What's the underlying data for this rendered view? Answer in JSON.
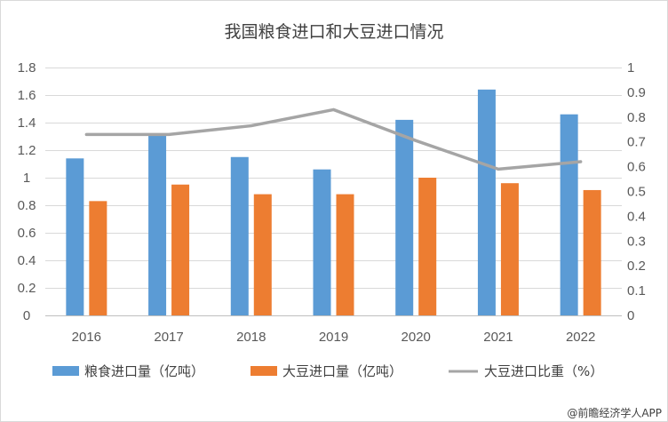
{
  "chart_data": {
    "type": "bar",
    "title": "我国粮食进口和大豆进口情况",
    "categories": [
      "2016",
      "2017",
      "2018",
      "2019",
      "2020",
      "2021",
      "2022"
    ],
    "series": [
      {
        "name": "粮食进口量（亿吨）",
        "kind": "bar",
        "axis": "left",
        "color": "#5b9bd5",
        "values": [
          1.14,
          1.31,
          1.15,
          1.06,
          1.42,
          1.64,
          1.46
        ]
      },
      {
        "name": "大豆进口量（亿吨）",
        "kind": "bar",
        "axis": "left",
        "color": "#ed7d31",
        "values": [
          0.83,
          0.95,
          0.88,
          0.88,
          1.0,
          0.96,
          0.91
        ]
      },
      {
        "name": "大豆进口比重（%）",
        "kind": "line",
        "axis": "right",
        "color": "#a5a5a5",
        "values": [
          0.73,
          0.73,
          0.765,
          0.83,
          0.705,
          0.59,
          0.62
        ]
      }
    ],
    "y_left": {
      "min": 0,
      "max": 1.8,
      "step": 0.2,
      "tick_labels": [
        "0",
        "0.2",
        "0.4",
        "0.6",
        "0.8",
        "1",
        "1.2",
        "1.4",
        "1.6",
        "1.8"
      ]
    },
    "y_right": {
      "min": 0,
      "max": 1,
      "step": 0.1,
      "tick_labels": [
        "0",
        "0.1",
        "0.2",
        "0.3",
        "0.4",
        "0.5",
        "0.6",
        "0.7",
        "0.8",
        "0.9",
        "1"
      ]
    },
    "grid": true,
    "legend_position": "bottom"
  },
  "source": "@前瞻经济学人APP"
}
